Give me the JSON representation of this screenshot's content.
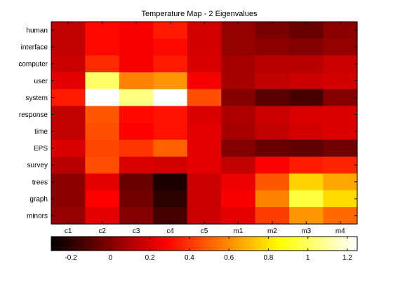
{
  "chart_data": {
    "type": "heatmap",
    "title": "Temperature Map - 2 Eigenvalues",
    "xlabel": "",
    "ylabel": "",
    "columns": [
      "c1",
      "c2",
      "c3",
      "c4",
      "c5",
      "m1",
      "m2",
      "m3",
      "m4"
    ],
    "rows": [
      "human",
      "interface",
      "computer",
      "user",
      "system",
      "response",
      "time",
      "EPS",
      "survey",
      "trees",
      "graph",
      "minors"
    ],
    "values": [
      [
        0.14,
        0.3,
        0.26,
        0.34,
        0.18,
        0.04,
        -0.02,
        -0.06,
        0.02
      ],
      [
        0.14,
        0.3,
        0.26,
        0.3,
        0.18,
        0.04,
        0.02,
        0.0,
        0.04
      ],
      [
        0.16,
        0.38,
        0.26,
        0.34,
        0.2,
        0.08,
        0.12,
        0.12,
        0.16
      ],
      [
        0.22,
        1.02,
        0.58,
        0.62,
        0.26,
        0.08,
        0.14,
        0.16,
        0.18
      ],
      [
        0.34,
        1.26,
        1.06,
        1.28,
        0.46,
        0.0,
        -0.1,
        -0.14,
        0.0
      ],
      [
        0.14,
        0.48,
        0.3,
        0.32,
        0.2,
        0.1,
        0.16,
        0.2,
        0.2
      ],
      [
        0.14,
        0.46,
        0.28,
        0.32,
        0.22,
        0.08,
        0.14,
        0.18,
        0.2
      ],
      [
        0.2,
        0.44,
        0.4,
        0.5,
        0.22,
        0.0,
        -0.06,
        -0.08,
        -0.04
      ],
      [
        0.12,
        0.46,
        0.2,
        0.18,
        0.22,
        0.14,
        0.28,
        0.34,
        0.36
      ],
      [
        0.02,
        0.22,
        -0.06,
        -0.24,
        0.16,
        0.24,
        0.48,
        0.76,
        0.66
      ],
      [
        0.02,
        0.28,
        -0.04,
        -0.2,
        0.16,
        0.26,
        0.58,
        0.96,
        0.78
      ],
      [
        0.04,
        0.22,
        0.0,
        -0.14,
        0.16,
        0.22,
        0.42,
        0.62,
        0.52
      ]
    ],
    "colormap": "hot",
    "clim": [
      -0.3,
      1.25
    ],
    "colorbar": {
      "orientation": "horizontal",
      "placement": "bottom",
      "ticks": [
        -0.2,
        0,
        0.2,
        0.4,
        0.6,
        0.8,
        1,
        1.2
      ],
      "tick_labels": [
        "-0.2",
        "0",
        "0.2",
        "0.4",
        "0.6",
        "0.8",
        "1",
        "1.2"
      ]
    },
    "grid": false,
    "legend": "none"
  }
}
